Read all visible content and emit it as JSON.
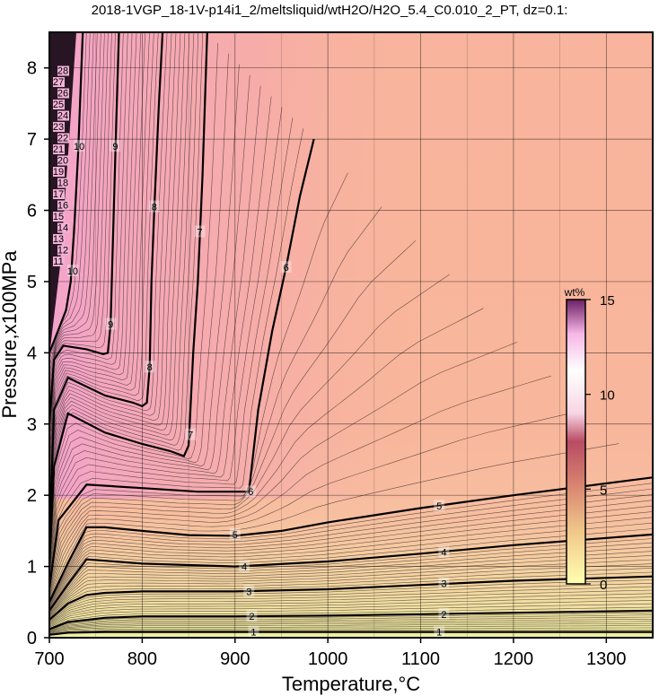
{
  "chart_data": {
    "type": "contour",
    "title": "2018-1VGP_18-1V-p14i1_2/meltsliquid/wtH2O/H2O_5.4_C0.010_2_PT, dz=0.1:",
    "xlabel": "Temperature,°C",
    "ylabel": "Pressure,x100MPa",
    "xlim": [
      700,
      1350
    ],
    "ylim": [
      0,
      8.5
    ],
    "xticks": [
      700,
      800,
      900,
      1000,
      1100,
      1200,
      1300
    ],
    "yticks": [
      0,
      1,
      2,
      3,
      4,
      5,
      6,
      7,
      8
    ],
    "grid": true,
    "z_unit": "wt%",
    "colorbar": {
      "title": "wt%",
      "range": [
        0,
        15
      ],
      "ticks": [
        0,
        5,
        10,
        15
      ],
      "placement": "right-inside"
    },
    "colors": {
      "low": "#f1f1a0",
      "mid": "#f9b59b",
      "high": "#f49fca",
      "max": "#6b1f63"
    },
    "contours": [
      {
        "level": 1,
        "labels_at": [
          [
            920,
            0.08
          ],
          [
            1120,
            0.08
          ]
        ],
        "x": [
          700,
          720,
          760,
          800,
          900,
          1000,
          1100,
          1200,
          1350
        ],
        "y": [
          0.04,
          0.07,
          0.08,
          0.08,
          0.08,
          0.08,
          0.08,
          0.08,
          0.08
        ]
      },
      {
        "level": 2,
        "labels_at": [
          [
            918,
            0.3
          ],
          [
            1125,
            0.33
          ]
        ],
        "x": [
          700,
          720,
          760,
          800,
          900,
          1000,
          1100,
          1200,
          1350
        ],
        "y": [
          0.12,
          0.22,
          0.28,
          0.3,
          0.3,
          0.31,
          0.33,
          0.35,
          0.38
        ]
      },
      {
        "level": 3,
        "labels_at": [
          [
            915,
            0.65
          ],
          [
            1125,
            0.76
          ]
        ],
        "x": [
          700,
          720,
          740,
          760,
          800,
          900,
          1000,
          1100,
          1200,
          1350
        ],
        "y": [
          0.25,
          0.48,
          0.6,
          0.63,
          0.65,
          0.65,
          0.68,
          0.74,
          0.8,
          0.86
        ]
      },
      {
        "level": 4,
        "labels_at": [
          [
            910,
            1.0
          ],
          [
            1125,
            1.2
          ]
        ],
        "x": [
          700,
          720,
          740,
          760,
          800,
          900,
          1000,
          1100,
          1200,
          1350
        ],
        "y": [
          0.38,
          0.75,
          1.1,
          1.08,
          1.04,
          1.0,
          1.07,
          1.18,
          1.3,
          1.45
        ]
      },
      {
        "level": 5,
        "labels_at": [
          [
            900,
            1.45
          ],
          [
            1120,
            1.85
          ]
        ],
        "x": [
          700,
          720,
          740,
          760,
          800,
          850,
          900,
          950,
          1000,
          1100,
          1200,
          1350
        ],
        "y": [
          0.5,
          1.05,
          1.55,
          1.55,
          1.5,
          1.44,
          1.43,
          1.5,
          1.62,
          1.82,
          2.0,
          2.25
        ]
      },
      {
        "level": 6,
        "labels_at": [
          [
            917,
            2.05
          ],
          [
            955,
            5.2
          ]
        ],
        "x": [
          700,
          710,
          740,
          800,
          860,
          900,
          915,
          918,
          925,
          940,
          955,
          970,
          985
        ],
        "y": [
          0.7,
          1.65,
          2.15,
          2.1,
          2.05,
          2.05,
          2.05,
          2.4,
          3.2,
          4.3,
          5.2,
          6.2,
          7.0
        ]
      },
      {
        "level": 7,
        "labels_at": [
          [
            852,
            2.85
          ],
          [
            862,
            5.7
          ]
        ],
        "x": [
          700,
          705,
          720,
          760,
          800,
          830,
          845,
          850,
          852,
          855,
          860,
          865,
          870
        ],
        "y": [
          1.0,
          2.4,
          3.15,
          2.88,
          2.72,
          2.62,
          2.55,
          2.7,
          3.2,
          4.0,
          5.0,
          6.5,
          8.5
        ]
      },
      {
        "level": 8,
        "labels_at": [
          [
            808,
            3.8
          ],
          [
            813,
            6.05
          ]
        ],
        "x": [
          700,
          705,
          720,
          760,
          790,
          800,
          805,
          808,
          810,
          813,
          818,
          822
        ],
        "y": [
          1.4,
          3.2,
          3.65,
          3.4,
          3.3,
          3.25,
          3.3,
          3.8,
          5.0,
          6.0,
          7.5,
          8.5
        ]
      },
      {
        "level": 9,
        "labels_at": [
          [
            766,
            4.4
          ],
          [
            771,
            6.9
          ]
        ],
        "x": [
          700,
          705,
          715,
          740,
          758,
          763,
          766,
          769,
          772,
          775
        ],
        "y": [
          3.0,
          3.9,
          4.1,
          4.05,
          3.98,
          4.0,
          4.4,
          5.8,
          7.2,
          8.5
        ]
      },
      {
        "level": 10,
        "labels_at": [
          [
            725,
            5.15
          ],
          [
            732,
            6.9
          ]
        ],
        "x": [
          700,
          712,
          718,
          723,
          727,
          731,
          736
        ],
        "y": [
          4.0,
          4.4,
          4.6,
          5.0,
          5.8,
          6.8,
          8.5
        ]
      }
    ],
    "high_value_labels": [
      "11",
      "12",
      "13",
      "14",
      "15",
      "16",
      "17",
      "18",
      "19",
      "20",
      "21",
      "22",
      "23",
      "24",
      "25",
      "26",
      "27",
      "28"
    ]
  }
}
